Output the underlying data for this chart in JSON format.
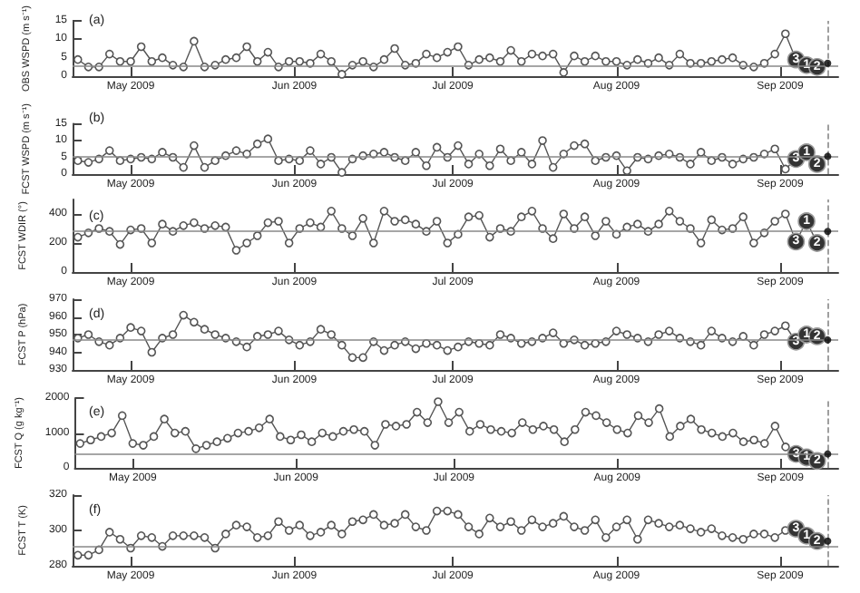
{
  "chart_data": [
    {
      "type": "line",
      "title": "(a)",
      "ylabel": "OBS WSPD (m s⁻¹)",
      "marker": "circle",
      "xlim": [
        "2009-04-20",
        "2009-09-12"
      ],
      "xticks": [
        {
          "value": "2009-05-01",
          "label": "May 2009"
        },
        {
          "value": "2009-06-01",
          "label": "Jun 2009"
        },
        {
          "value": "2009-07-01",
          "label": "Jul 2009"
        },
        {
          "value": "2009-08-01",
          "label": "Aug 2009"
        },
        {
          "value": "2009-09-01",
          "label": "Sep 2009"
        }
      ],
      "ylim": [
        0,
        15
      ],
      "yticks": [
        0,
        5,
        10,
        15
      ],
      "x": [
        "2009-04-21",
        "2009-04-23",
        "2009-04-25",
        "2009-04-27",
        "2009-04-29",
        "2009-05-01",
        "2009-05-03",
        "2009-05-05",
        "2009-05-07",
        "2009-05-09",
        "2009-05-11",
        "2009-05-13",
        "2009-05-15",
        "2009-05-17",
        "2009-05-19",
        "2009-05-21",
        "2009-05-23",
        "2009-05-25",
        "2009-05-27",
        "2009-05-29",
        "2009-05-31",
        "2009-06-02",
        "2009-06-04",
        "2009-06-06",
        "2009-06-08",
        "2009-06-10",
        "2009-06-12",
        "2009-06-14",
        "2009-06-16",
        "2009-06-18",
        "2009-06-20",
        "2009-06-22",
        "2009-06-24",
        "2009-06-26",
        "2009-06-28",
        "2009-06-30",
        "2009-07-02",
        "2009-07-04",
        "2009-07-06",
        "2009-07-08",
        "2009-07-10",
        "2009-07-12",
        "2009-07-14",
        "2009-07-16",
        "2009-07-18",
        "2009-07-20",
        "2009-07-22",
        "2009-07-24",
        "2009-07-26",
        "2009-07-28",
        "2009-07-30",
        "2009-08-01",
        "2009-08-03",
        "2009-08-05",
        "2009-08-07",
        "2009-08-09",
        "2009-08-11",
        "2009-08-13",
        "2009-08-15",
        "2009-08-17",
        "2009-08-19",
        "2009-08-21",
        "2009-08-23",
        "2009-08-25",
        "2009-08-27",
        "2009-08-29",
        "2009-08-31",
        "2009-09-02",
        "2009-09-04",
        "2009-09-06",
        "2009-09-08"
      ],
      "series": [
        {
          "color": "#555555",
          "values": [
            4.5,
            2.5,
            2.5,
            6,
            4,
            4,
            8,
            4,
            5,
            3,
            2.5,
            9.5,
            2.5,
            3,
            4.5,
            5,
            8,
            4,
            6.5,
            2.5,
            4,
            4,
            3.5,
            6,
            4,
            0.5,
            3,
            4,
            2.5,
            4.5,
            7.5,
            3,
            3.5,
            6,
            5,
            6.5,
            8,
            3,
            4.5,
            5,
            4,
            7,
            4,
            6,
            5.5,
            6,
            1,
            5.5,
            4,
            5.5,
            4,
            4,
            3,
            4.5,
            3.5,
            5,
            3,
            6,
            3.5,
            3.5,
            4,
            4.5,
            5,
            3,
            2.5,
            3.5,
            6,
            11.5,
            4.5,
            3,
            2.5
          ]
        },
        {
          "type": "scatter",
          "color": "#000000",
          "x": [
            "2009-09-10"
          ],
          "values": [
            3.5
          ]
        }
      ],
      "ref_lines": [
        {
          "axis": "y",
          "value": 3,
          "color": "#888888"
        },
        {
          "axis": "x",
          "value": "2009-09-10",
          "color": "#888888",
          "line_style": "dashed"
        }
      ],
      "annotations": [
        {
          "text": "3",
          "x": "2009-09-04",
          "y": 4.5
        },
        {
          "text": "1",
          "x": "2009-09-06",
          "y": 3
        },
        {
          "text": "2",
          "x": "2009-09-08",
          "y": 2.5
        }
      ]
    },
    {
      "type": "line",
      "title": "(b)",
      "ylabel": "FCST WSPD (m s⁻¹)",
      "marker": "circle",
      "xlim": [
        "2009-04-20",
        "2009-09-12"
      ],
      "xticks": [
        {
          "value": "2009-05-01",
          "label": "May 2009"
        },
        {
          "value": "2009-06-01",
          "label": "Jun 2009"
        },
        {
          "value": "2009-07-01",
          "label": "Jul 2009"
        },
        {
          "value": "2009-08-01",
          "label": "Aug 2009"
        },
        {
          "value": "2009-09-01",
          "label": "Sep 2009"
        }
      ],
      "ylim": [
        0,
        15
      ],
      "yticks": [
        0,
        5,
        10,
        15
      ],
      "x": [
        "2009-04-21",
        "2009-04-23",
        "2009-04-25",
        "2009-04-27",
        "2009-04-29",
        "2009-05-01",
        "2009-05-03",
        "2009-05-05",
        "2009-05-07",
        "2009-05-09",
        "2009-05-11",
        "2009-05-13",
        "2009-05-15",
        "2009-05-17",
        "2009-05-19",
        "2009-05-21",
        "2009-05-23",
        "2009-05-25",
        "2009-05-27",
        "2009-05-29",
        "2009-05-31",
        "2009-06-02",
        "2009-06-04",
        "2009-06-06",
        "2009-06-08",
        "2009-06-10",
        "2009-06-12",
        "2009-06-14",
        "2009-06-16",
        "2009-06-18",
        "2009-06-20",
        "2009-06-22",
        "2009-06-24",
        "2009-06-26",
        "2009-06-28",
        "2009-06-30",
        "2009-07-02",
        "2009-07-04",
        "2009-07-06",
        "2009-07-08",
        "2009-07-10",
        "2009-07-12",
        "2009-07-14",
        "2009-07-16",
        "2009-07-18",
        "2009-07-20",
        "2009-07-22",
        "2009-07-24",
        "2009-07-26",
        "2009-07-28",
        "2009-07-30",
        "2009-08-01",
        "2009-08-03",
        "2009-08-05",
        "2009-08-07",
        "2009-08-09",
        "2009-08-11",
        "2009-08-13",
        "2009-08-15",
        "2009-08-17",
        "2009-08-19",
        "2009-08-21",
        "2009-08-23",
        "2009-08-25",
        "2009-08-27",
        "2009-08-29",
        "2009-08-31",
        "2009-09-02",
        "2009-09-04",
        "2009-09-06",
        "2009-09-08"
      ],
      "series": [
        {
          "color": "#555555",
          "values": [
            4,
            3.5,
            4.5,
            7,
            4,
            4.5,
            5,
            4.5,
            6.5,
            5,
            2,
            8.5,
            2,
            4,
            5.5,
            7,
            6,
            9,
            10.5,
            4,
            4.5,
            4,
            7,
            3,
            5,
            0.5,
            4.5,
            5.5,
            6,
            6.5,
            5,
            4,
            6.5,
            2.5,
            8,
            5,
            8.5,
            3,
            6,
            2.5,
            7.5,
            4,
            6.5,
            3,
            10,
            2,
            6,
            8.5,
            9,
            4,
            5,
            5.5,
            1,
            5,
            4.5,
            5.5,
            6,
            5,
            3,
            6.5,
            4,
            5,
            3,
            4.5,
            5,
            6,
            7.5,
            1.5,
            4.5,
            6.5,
            3
          ]
        },
        {
          "type": "scatter",
          "color": "#000000",
          "x": [
            "2009-09-10"
          ],
          "values": [
            5.3
          ]
        }
      ],
      "ref_lines": [
        {
          "axis": "y",
          "value": 5.3,
          "color": "#888888"
        },
        {
          "axis": "x",
          "value": "2009-09-10",
          "color": "#888888",
          "line_style": "dashed"
        }
      ],
      "annotations": [
        {
          "text": "3",
          "x": "2009-09-04",
          "y": 4.5
        },
        {
          "text": "1",
          "x": "2009-09-06",
          "y": 6.5
        },
        {
          "text": "2",
          "x": "2009-09-08",
          "y": 3
        }
      ]
    },
    {
      "type": "line",
      "title": "(c)",
      "ylabel": "FCST WDIR (°)",
      "marker": "circle",
      "xlim": [
        "2009-04-20",
        "2009-09-12"
      ],
      "xticks": [
        {
          "value": "2009-05-01",
          "label": "May 2009"
        },
        {
          "value": "2009-06-01",
          "label": "Jun 2009"
        },
        {
          "value": "2009-07-01",
          "label": "Jul 2009"
        },
        {
          "value": "2009-08-01",
          "label": "Aug 2009"
        },
        {
          "value": "2009-09-01",
          "label": "Sep 2009"
        }
      ],
      "ylim": [
        0,
        500
      ],
      "yticks": [
        0,
        200,
        400
      ],
      "x": [
        "2009-04-21",
        "2009-04-23",
        "2009-04-25",
        "2009-04-27",
        "2009-04-29",
        "2009-05-01",
        "2009-05-03",
        "2009-05-05",
        "2009-05-07",
        "2009-05-09",
        "2009-05-11",
        "2009-05-13",
        "2009-05-15",
        "2009-05-17",
        "2009-05-19",
        "2009-05-21",
        "2009-05-23",
        "2009-05-25",
        "2009-05-27",
        "2009-05-29",
        "2009-05-31",
        "2009-06-02",
        "2009-06-04",
        "2009-06-06",
        "2009-06-08",
        "2009-06-10",
        "2009-06-12",
        "2009-06-14",
        "2009-06-16",
        "2009-06-18",
        "2009-06-20",
        "2009-06-22",
        "2009-06-24",
        "2009-06-26",
        "2009-06-28",
        "2009-06-30",
        "2009-07-02",
        "2009-07-04",
        "2009-07-06",
        "2009-07-08",
        "2009-07-10",
        "2009-07-12",
        "2009-07-14",
        "2009-07-16",
        "2009-07-18",
        "2009-07-20",
        "2009-07-22",
        "2009-07-24",
        "2009-07-26",
        "2009-07-28",
        "2009-07-30",
        "2009-08-01",
        "2009-08-03",
        "2009-08-05",
        "2009-08-07",
        "2009-08-09",
        "2009-08-11",
        "2009-08-13",
        "2009-08-15",
        "2009-08-17",
        "2009-08-19",
        "2009-08-21",
        "2009-08-23",
        "2009-08-25",
        "2009-08-27",
        "2009-08-29",
        "2009-08-31",
        "2009-09-02",
        "2009-09-04",
        "2009-09-06",
        "2009-09-08"
      ],
      "series": [
        {
          "color": "#555555",
          "values": [
            240,
            270,
            300,
            280,
            190,
            290,
            300,
            200,
            330,
            280,
            320,
            340,
            300,
            320,
            310,
            150,
            200,
            250,
            340,
            350,
            200,
            300,
            340,
            310,
            420,
            300,
            250,
            370,
            200,
            420,
            350,
            360,
            330,
            280,
            350,
            200,
            260,
            380,
            390,
            240,
            300,
            280,
            380,
            420,
            300,
            230,
            400,
            300,
            380,
            250,
            350,
            260,
            310,
            330,
            280,
            330,
            420,
            350,
            300,
            200,
            360,
            290,
            300,
            380,
            200,
            270,
            350,
            400,
            210,
            350,
            200
          ]
        },
        {
          "type": "scatter",
          "color": "#000000",
          "x": [
            "2009-09-10"
          ],
          "values": [
            280
          ]
        }
      ],
      "ref_lines": [
        {
          "axis": "y",
          "value": 290,
          "color": "#888888"
        },
        {
          "axis": "x",
          "value": "2009-09-10",
          "color": "#888888",
          "line_style": "dashed"
        }
      ],
      "annotations": [
        {
          "text": "3",
          "x": "2009-09-04",
          "y": 210
        },
        {
          "text": "1",
          "x": "2009-09-06",
          "y": 350
        },
        {
          "text": "2",
          "x": "2009-09-08",
          "y": 200
        }
      ]
    },
    {
      "type": "line",
      "title": "(d)",
      "ylabel": "FCST P (hPa)",
      "marker": "circle",
      "xlim": [
        "2009-04-20",
        "2009-09-12"
      ],
      "xticks": [
        {
          "value": "2009-05-01",
          "label": "May 2009"
        },
        {
          "value": "2009-06-01",
          "label": "Jun 2009"
        },
        {
          "value": "2009-07-01",
          "label": "Jul 2009"
        },
        {
          "value": "2009-08-01",
          "label": "Aug 2009"
        },
        {
          "value": "2009-09-01",
          "label": "Sep 2009"
        }
      ],
      "ylim": [
        930,
        970
      ],
      "yticks": [
        930,
        940,
        950,
        960,
        970
      ],
      "x": [
        "2009-04-21",
        "2009-04-23",
        "2009-04-25",
        "2009-04-27",
        "2009-04-29",
        "2009-05-01",
        "2009-05-03",
        "2009-05-05",
        "2009-05-07",
        "2009-05-09",
        "2009-05-11",
        "2009-05-13",
        "2009-05-15",
        "2009-05-17",
        "2009-05-19",
        "2009-05-21",
        "2009-05-23",
        "2009-05-25",
        "2009-05-27",
        "2009-05-29",
        "2009-05-31",
        "2009-06-02",
        "2009-06-04",
        "2009-06-06",
        "2009-06-08",
        "2009-06-10",
        "2009-06-12",
        "2009-06-14",
        "2009-06-16",
        "2009-06-18",
        "2009-06-20",
        "2009-06-22",
        "2009-06-24",
        "2009-06-26",
        "2009-06-28",
        "2009-06-30",
        "2009-07-02",
        "2009-07-04",
        "2009-07-06",
        "2009-07-08",
        "2009-07-10",
        "2009-07-12",
        "2009-07-14",
        "2009-07-16",
        "2009-07-18",
        "2009-07-20",
        "2009-07-22",
        "2009-07-24",
        "2009-07-26",
        "2009-07-28",
        "2009-07-30",
        "2009-08-01",
        "2009-08-03",
        "2009-08-05",
        "2009-08-07",
        "2009-08-09",
        "2009-08-11",
        "2009-08-13",
        "2009-08-15",
        "2009-08-17",
        "2009-08-19",
        "2009-08-21",
        "2009-08-23",
        "2009-08-25",
        "2009-08-27",
        "2009-08-29",
        "2009-08-31",
        "2009-09-02",
        "2009-09-04",
        "2009-09-06",
        "2009-09-08"
      ],
      "series": [
        {
          "color": "#555555",
          "values": [
            948,
            950,
            946,
            944,
            948,
            954,
            952,
            940,
            948,
            950,
            961,
            957,
            953,
            950,
            948,
            946,
            943,
            949,
            950,
            952,
            947,
            944,
            946,
            953,
            950,
            944,
            937,
            937,
            946,
            941,
            944,
            946,
            942,
            945,
            944,
            941,
            943,
            946,
            945,
            944,
            950,
            948,
            945,
            946,
            948,
            951,
            945,
            947,
            944,
            945,
            946,
            952,
            950,
            948,
            946,
            950,
            952,
            948,
            946,
            944,
            952,
            948,
            946,
            949,
            944,
            950,
            952,
            955,
            946,
            950,
            949
          ]
        },
        {
          "type": "scatter",
          "color": "#000000",
          "x": [
            "2009-09-10"
          ],
          "values": [
            947
          ]
        }
      ],
      "ref_lines": [
        {
          "axis": "y",
          "value": 947,
          "color": "#888888"
        },
        {
          "axis": "x",
          "value": "2009-09-10",
          "color": "#888888",
          "line_style": "dashed"
        }
      ],
      "annotations": [
        {
          "text": "3",
          "x": "2009-09-04",
          "y": 946
        },
        {
          "text": "1",
          "x": "2009-09-06",
          "y": 950
        },
        {
          "text": "2",
          "x": "2009-09-08",
          "y": 949
        }
      ]
    },
    {
      "type": "line",
      "title": "(e)",
      "ylabel": "FCST Q (g kg⁻¹)",
      "marker": "circle",
      "xlim": [
        "2009-04-20",
        "2009-09-12"
      ],
      "xticks": [
        {
          "value": "2009-05-01",
          "label": "May 2009"
        },
        {
          "value": "2009-06-01",
          "label": "Jun 2009"
        },
        {
          "value": "2009-07-01",
          "label": "Jul 2009"
        },
        {
          "value": "2009-08-01",
          "label": "Aug 2009"
        },
        {
          "value": "2009-09-01",
          "label": "Sep 2009"
        }
      ],
      "ylim": [
        0,
        2000
      ],
      "yticks": [
        0,
        1000,
        2000
      ],
      "x": [
        "2009-04-21",
        "2009-04-23",
        "2009-04-25",
        "2009-04-27",
        "2009-04-29",
        "2009-05-01",
        "2009-05-03",
        "2009-05-05",
        "2009-05-07",
        "2009-05-09",
        "2009-05-11",
        "2009-05-13",
        "2009-05-15",
        "2009-05-17",
        "2009-05-19",
        "2009-05-21",
        "2009-05-23",
        "2009-05-25",
        "2009-05-27",
        "2009-05-29",
        "2009-05-31",
        "2009-06-02",
        "2009-06-04",
        "2009-06-06",
        "2009-06-08",
        "2009-06-10",
        "2009-06-12",
        "2009-06-14",
        "2009-06-16",
        "2009-06-18",
        "2009-06-20",
        "2009-06-22",
        "2009-06-24",
        "2009-06-26",
        "2009-06-28",
        "2009-06-30",
        "2009-07-02",
        "2009-07-04",
        "2009-07-06",
        "2009-07-08",
        "2009-07-10",
        "2009-07-12",
        "2009-07-14",
        "2009-07-16",
        "2009-07-18",
        "2009-07-20",
        "2009-07-22",
        "2009-07-24",
        "2009-07-26",
        "2009-07-28",
        "2009-07-30",
        "2009-08-01",
        "2009-08-03",
        "2009-08-05",
        "2009-08-07",
        "2009-08-09",
        "2009-08-11",
        "2009-08-13",
        "2009-08-15",
        "2009-08-17",
        "2009-08-19",
        "2009-08-21",
        "2009-08-23",
        "2009-08-25",
        "2009-08-27",
        "2009-08-29",
        "2009-08-31",
        "2009-09-02",
        "2009-09-04",
        "2009-09-06",
        "2009-09-08"
      ],
      "series": [
        {
          "color": "#555555",
          "values": [
            700,
            800,
            900,
            1000,
            1500,
            700,
            650,
            900,
            1400,
            1000,
            1050,
            550,
            650,
            750,
            850,
            1000,
            1050,
            1150,
            1400,
            900,
            800,
            950,
            750,
            1000,
            900,
            1050,
            1100,
            1050,
            650,
            1250,
            1200,
            1250,
            1600,
            1300,
            1900,
            1300,
            1600,
            1050,
            1250,
            1100,
            1050,
            1000,
            1300,
            1100,
            1200,
            1100,
            750,
            1100,
            1600,
            1500,
            1300,
            1100,
            1000,
            1500,
            1300,
            1700,
            900,
            1200,
            1400,
            1100,
            1000,
            900,
            1000,
            750,
            800,
            700,
            1200,
            600,
            400,
            300,
            200
          ]
        },
        {
          "type": "scatter",
          "color": "#000000",
          "x": [
            "2009-09-10"
          ],
          "values": [
            400
          ]
        }
      ],
      "ref_lines": [
        {
          "axis": "y",
          "value": 400,
          "color": "#888888"
        },
        {
          "axis": "x",
          "value": "2009-09-10",
          "color": "#888888",
          "line_style": "dashed"
        }
      ],
      "annotations": [
        {
          "text": "3",
          "x": "2009-09-04",
          "y": 400
        },
        {
          "text": "1",
          "x": "2009-09-06",
          "y": 300
        },
        {
          "text": "2",
          "x": "2009-09-08",
          "y": 200
        }
      ]
    },
    {
      "type": "line",
      "title": "(f)",
      "ylabel": "FCST T (K)",
      "marker": "circle",
      "xlim": [
        "2009-04-20",
        "2009-09-12"
      ],
      "xticks": [
        {
          "value": "2009-05-01",
          "label": "May 2009"
        },
        {
          "value": "2009-06-01",
          "label": "Jun 2009"
        },
        {
          "value": "2009-07-01",
          "label": "Jul 2009"
        },
        {
          "value": "2009-08-01",
          "label": "Aug 2009"
        },
        {
          "value": "2009-09-01",
          "label": "Sep 2009"
        }
      ],
      "ylim": [
        280,
        320
      ],
      "yticks": [
        280,
        300,
        320
      ],
      "x": [
        "2009-04-21",
        "2009-04-23",
        "2009-04-25",
        "2009-04-27",
        "2009-04-29",
        "2009-05-01",
        "2009-05-03",
        "2009-05-05",
        "2009-05-07",
        "2009-05-09",
        "2009-05-11",
        "2009-05-13",
        "2009-05-15",
        "2009-05-17",
        "2009-05-19",
        "2009-05-21",
        "2009-05-23",
        "2009-05-25",
        "2009-05-27",
        "2009-05-29",
        "2009-05-31",
        "2009-06-02",
        "2009-06-04",
        "2009-06-06",
        "2009-06-08",
        "2009-06-10",
        "2009-06-12",
        "2009-06-14",
        "2009-06-16",
        "2009-06-18",
        "2009-06-20",
        "2009-06-22",
        "2009-06-24",
        "2009-06-26",
        "2009-06-28",
        "2009-06-30",
        "2009-07-02",
        "2009-07-04",
        "2009-07-06",
        "2009-07-08",
        "2009-07-10",
        "2009-07-12",
        "2009-07-14",
        "2009-07-16",
        "2009-07-18",
        "2009-07-20",
        "2009-07-22",
        "2009-07-24",
        "2009-07-26",
        "2009-07-28",
        "2009-07-30",
        "2009-08-01",
        "2009-08-03",
        "2009-08-05",
        "2009-08-07",
        "2009-08-09",
        "2009-08-11",
        "2009-08-13",
        "2009-08-15",
        "2009-08-17",
        "2009-08-19",
        "2009-08-21",
        "2009-08-23",
        "2009-08-25",
        "2009-08-27",
        "2009-08-29",
        "2009-08-31",
        "2009-09-02",
        "2009-09-04",
        "2009-09-06",
        "2009-09-08"
      ],
      "series": [
        {
          "color": "#555555",
          "values": [
            286,
            286,
            289,
            299,
            295,
            290,
            297,
            296,
            291,
            297,
            297,
            297,
            296,
            290,
            298,
            303,
            302,
            296,
            297,
            305,
            300,
            303,
            297,
            299,
            303,
            298,
            305,
            306,
            309,
            303,
            304,
            309,
            302,
            300,
            311,
            311,
            309,
            302,
            298,
            307,
            302,
            305,
            300,
            306,
            302,
            304,
            308,
            302,
            300,
            306,
            296,
            302,
            306,
            295,
            306,
            304,
            302,
            303,
            301,
            299,
            301,
            297,
            296,
            295,
            298,
            298,
            296,
            300,
            301,
            297,
            294
          ]
        },
        {
          "type": "scatter",
          "color": "#000000",
          "x": [
            "2009-09-10"
          ],
          "values": [
            294
          ]
        }
      ],
      "ref_lines": [
        {
          "axis": "y",
          "value": 291,
          "color": "#888888"
        },
        {
          "axis": "x",
          "value": "2009-09-10",
          "color": "#888888",
          "line_style": "dashed"
        }
      ],
      "annotations": [
        {
          "text": "3",
          "x": "2009-09-04",
          "y": 301
        },
        {
          "text": "1",
          "x": "2009-09-06",
          "y": 297
        },
        {
          "text": "2",
          "x": "2009-09-08",
          "y": 294
        }
      ]
    }
  ]
}
